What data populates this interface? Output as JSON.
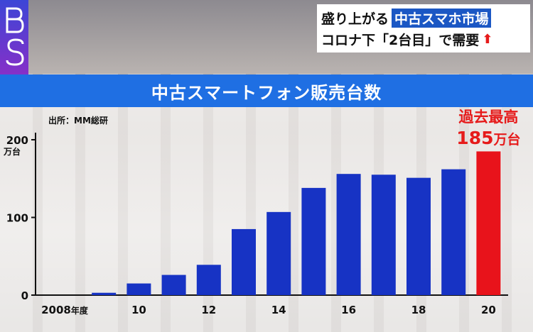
{
  "headline": {
    "line1_prefix": "盛り上がる",
    "line1_highlight": "中古スマホ市場",
    "line2": "コロナ下「2台目」で需要",
    "line2_arrow": "⬆"
  },
  "chart_data": {
    "type": "bar",
    "title": "中古スマートフォン販売台数",
    "source": "出所：MM総研",
    "unit_label": "万台",
    "years": [
      2008,
      2009,
      2010,
      2011,
      2012,
      2013,
      2014,
      2015,
      2016,
      2017,
      2018,
      2019,
      2020
    ],
    "values": [
      0,
      3,
      15,
      26,
      39,
      85,
      107,
      138,
      156,
      155,
      151,
      162,
      185
    ],
    "highlight_last": true,
    "ylim": [
      0,
      200
    ],
    "yticks": [
      0,
      100,
      200
    ],
    "xtick_labels": [
      {
        "year": 2008,
        "label": "2008",
        "suffix": "年度"
      },
      {
        "year": 2010,
        "label": "10"
      },
      {
        "year": 2012,
        "label": "12"
      },
      {
        "year": 2014,
        "label": "14"
      },
      {
        "year": 2016,
        "label": "16"
      },
      {
        "year": 2018,
        "label": "18"
      },
      {
        "year": 2020,
        "label": "20"
      }
    ],
    "annotation": {
      "line1": "過去最高",
      "value": "185",
      "unit": "万台"
    },
    "colors": {
      "bar": "#1733c4",
      "highlight": "#e8131b"
    }
  }
}
